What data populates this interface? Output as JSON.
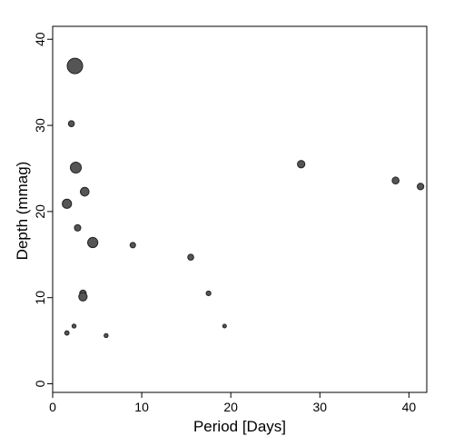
{
  "chart_data": {
    "type": "scatter",
    "xlabel": "Period [Days]",
    "ylabel": "Depth (mmag)",
    "xlim": [
      0,
      42
    ],
    "ylim": [
      -1,
      41.5
    ],
    "xticks": [
      0,
      10,
      20,
      30,
      40
    ],
    "yticks": [
      0,
      10,
      20,
      30,
      40
    ],
    "grid": false,
    "marker_color": "#555555",
    "marker_edge_color": "#222222",
    "points": [
      {
        "x": 2.5,
        "y": 36.9,
        "size": 8.5
      },
      {
        "x": 2.1,
        "y": 30.2,
        "size": 3.3
      },
      {
        "x": 2.6,
        "y": 25.1,
        "size": 6.0
      },
      {
        "x": 3.6,
        "y": 22.3,
        "size": 4.8
      },
      {
        "x": 1.6,
        "y": 20.9,
        "size": 5.1
      },
      {
        "x": 2.8,
        "y": 18.1,
        "size": 3.5
      },
      {
        "x": 4.5,
        "y": 16.4,
        "size": 5.6
      },
      {
        "x": 9.0,
        "y": 16.1,
        "size": 3.0
      },
      {
        "x": 15.5,
        "y": 14.7,
        "size": 3.3
      },
      {
        "x": 3.4,
        "y": 10.5,
        "size": 3.6
      },
      {
        "x": 3.4,
        "y": 10.1,
        "size": 4.6
      },
      {
        "x": 17.5,
        "y": 10.5,
        "size": 2.6
      },
      {
        "x": 2.4,
        "y": 6.7,
        "size": 2.2
      },
      {
        "x": 1.6,
        "y": 5.9,
        "size": 2.4
      },
      {
        "x": 6.0,
        "y": 5.6,
        "size": 2.2
      },
      {
        "x": 19.3,
        "y": 6.7,
        "size": 2.0
      },
      {
        "x": 27.9,
        "y": 25.5,
        "size": 4.1
      },
      {
        "x": 38.5,
        "y": 23.6,
        "size": 3.8
      },
      {
        "x": 41.3,
        "y": 22.9,
        "size": 3.6
      }
    ]
  }
}
